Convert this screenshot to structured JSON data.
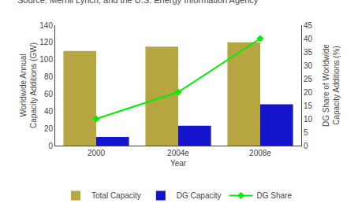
{
  "chart_data": {
    "type": "bar",
    "annotations": [
      "Source: Merrill Lynch, and the U.S. Energy Information Agency"
    ],
    "categories": [
      "2000",
      "2004e",
      "2008e"
    ],
    "series": [
      {
        "name": "Total Capacity",
        "color": "#b5a642",
        "values": [
          110,
          115,
          120
        ]
      },
      {
        "name": "DG Capacity",
        "color": "#1414cc",
        "values": [
          10,
          23,
          48
        ]
      },
      {
        "name": "DG Share",
        "type": "line",
        "marker": "diamond",
        "color": "#00ee00",
        "axis": "y2",
        "values": [
          10,
          20,
          40
        ]
      }
    ],
    "xlabel": "Year",
    "ylabel": "Worldwide Annual\nCapacity Additions (GW)",
    "y2label": "DG Share of Worldwide\nCapacity Additions (%)",
    "ylim": [
      0,
      140
    ],
    "yticks": [
      0,
      20,
      40,
      60,
      80,
      100,
      120,
      140
    ],
    "y2lim": [
      0,
      45
    ],
    "y2ticks": [
      0,
      5,
      10,
      15,
      20,
      25,
      30,
      35,
      40,
      45
    ],
    "legend": "bottom",
    "grid": false
  }
}
